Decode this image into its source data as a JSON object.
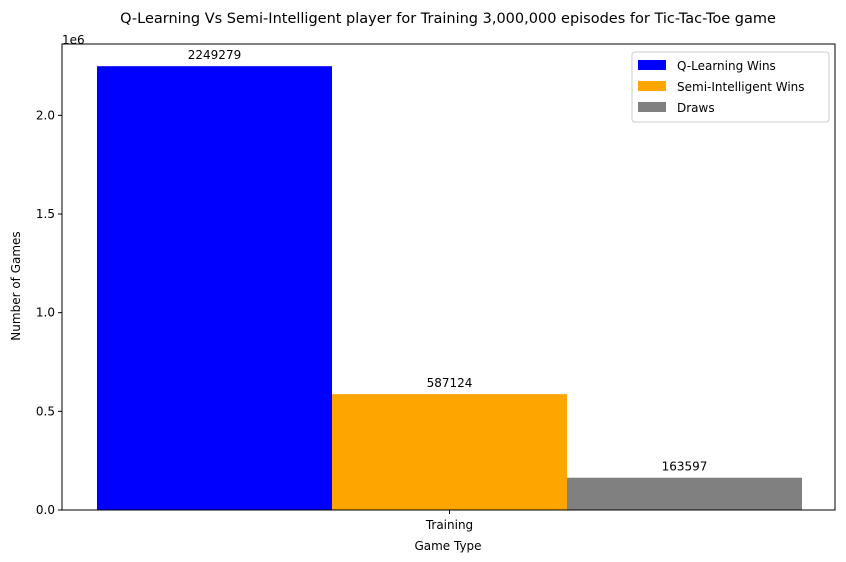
{
  "chart_data": {
    "type": "bar",
    "title": "Q-Learning Vs Semi-Intelligent player for Training 3,000,000 episodes for Tic-Tac-Toe game",
    "xlabel": "Game Type",
    "ylabel": "Number of Games",
    "categories": [
      "Training"
    ],
    "y_multiplier_label": "1e6",
    "ylim": [
      0,
      2361743
    ],
    "yticks": [
      0,
      500000,
      1000000,
      1500000,
      2000000
    ],
    "ytick_labels": [
      "0.0",
      "0.5",
      "1.0",
      "1.5",
      "2.0"
    ],
    "grid": false,
    "legend_position": "top-right",
    "series": [
      {
        "name": "Q-Learning Wins",
        "values": [
          2249279
        ],
        "value_label": "2249279",
        "color": "#0000ff"
      },
      {
        "name": "Semi-Intelligent Wins",
        "values": [
          587124
        ],
        "value_label": "587124",
        "color": "#ffa500"
      },
      {
        "name": "Draws",
        "values": [
          163597
        ],
        "value_label": "163597",
        "color": "#808080"
      }
    ]
  }
}
